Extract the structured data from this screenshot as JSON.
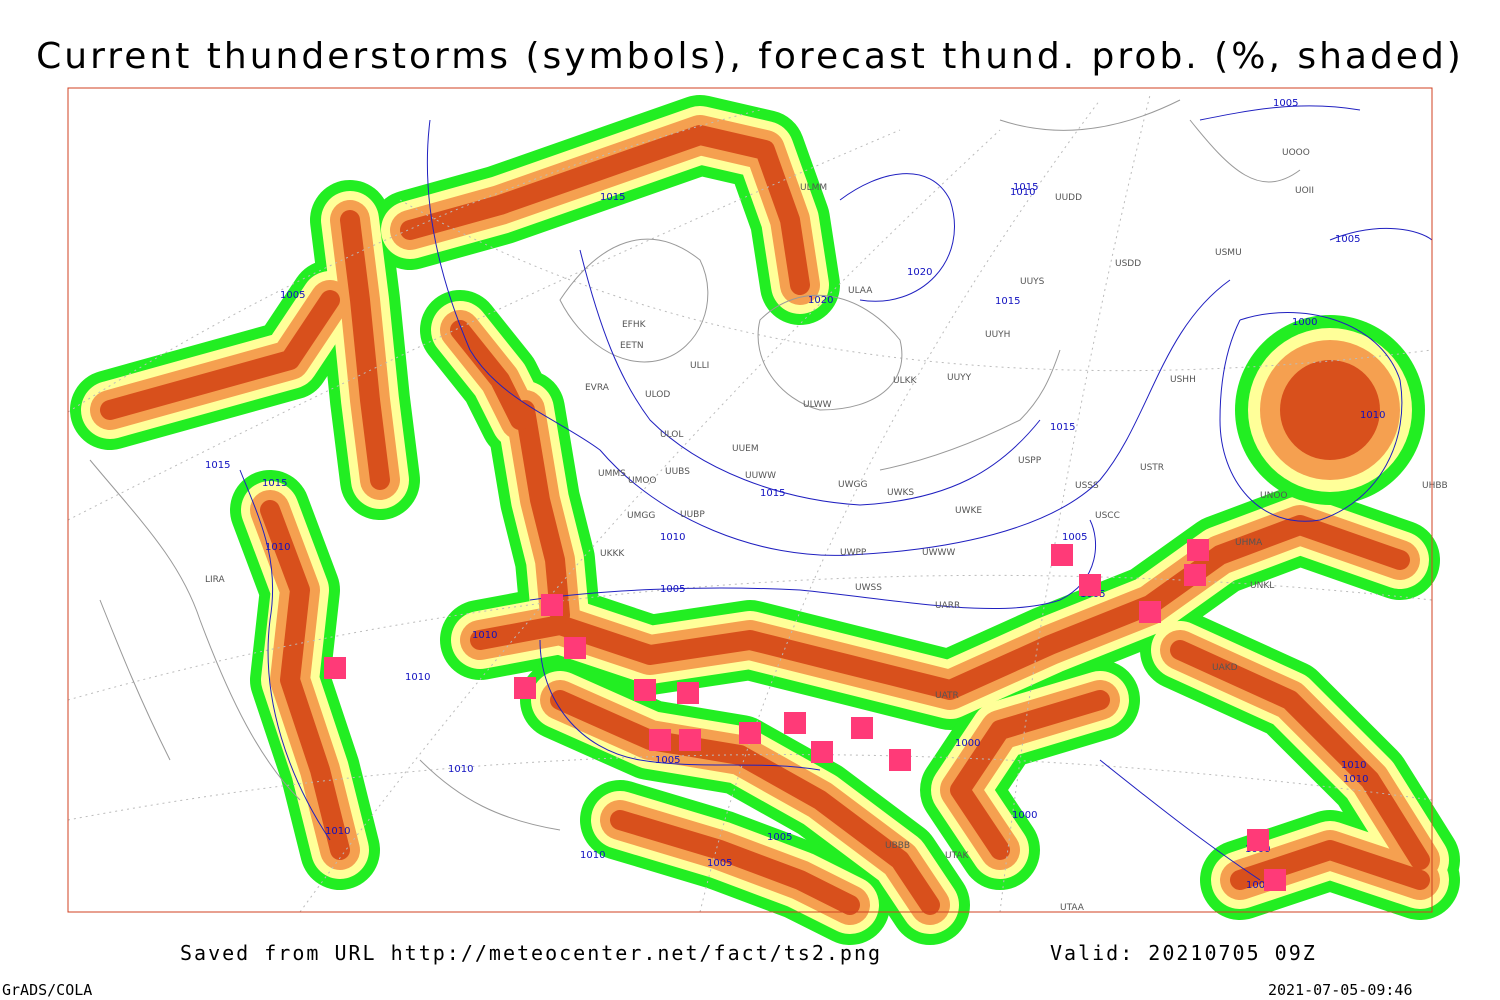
{
  "title": "Current thunderstorms (symbols), forecast thund. prob. (%, shaded)",
  "footer": {
    "saved_from": "Saved from URL http://meteocenter.net/fact/ts2.png",
    "valid": "Valid: 20210705 09Z",
    "software": "GrADS/COLA",
    "timestamp": "2021-07-05-09:46"
  },
  "isobar_labels": [
    "1010",
    "1015",
    "1005",
    "1010",
    "1015",
    "1015",
    "1010",
    "1010",
    "1005",
    "1010",
    "1010",
    "1005",
    "1020",
    "1020",
    "1015",
    "1015",
    "1015",
    "1015",
    "1010",
    "1005",
    "1000",
    "1000",
    "1005",
    "1000",
    "1005",
    "1010",
    "1010",
    "1005",
    "1010",
    "1005",
    "1000",
    "1000",
    "1010",
    "1005"
  ],
  "station_labels": [
    "EFHK",
    "EETN",
    "ULLI",
    "EVRA",
    "ULOD",
    "ULOL",
    "UMMS",
    "UMOO",
    "UUEM",
    "UUBS",
    "UUWW",
    "UMGG",
    "UUBP",
    "UKKK",
    "ULWW",
    "ULKK",
    "UUYY",
    "UUYH",
    "UUYS",
    "USDD",
    "USMU",
    "UOOO",
    "UOII",
    "UUDD",
    "ULMM",
    "ULAA",
    "USPP",
    "USSS",
    "USCC",
    "UWGG",
    "UWKS",
    "UWKE",
    "UWPP",
    "UWWW",
    "UWSS",
    "UARR",
    "UATR",
    "UHMA",
    "UHBB",
    "USTR",
    "USHH",
    "UNOO",
    "UNKL",
    "LIRA",
    "UTAK",
    "UTAA",
    "UBBB",
    "UAKD"
  ]
}
